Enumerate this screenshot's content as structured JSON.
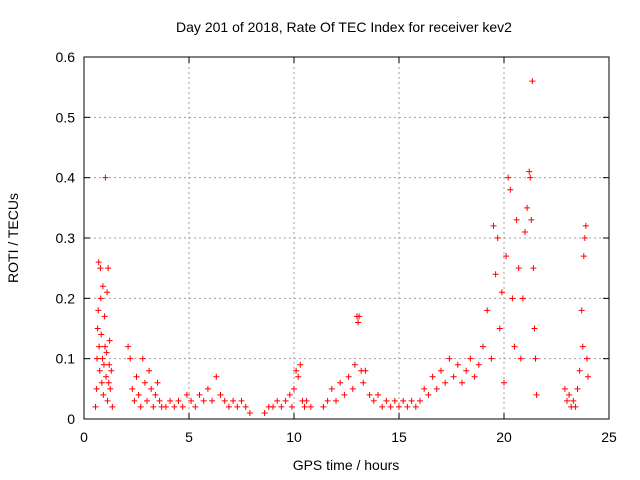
{
  "chart_data": {
    "type": "scatter",
    "title": "Day 201 of 2018, Rate Of TEC Index for receiver kev2",
    "xlabel": "GPS time / hours",
    "ylabel": "ROTI / TECUs",
    "xlim": [
      0,
      25
    ],
    "ylim": [
      0,
      0.6
    ],
    "xticks": [
      0,
      5,
      10,
      15,
      20,
      25
    ],
    "xtick_labels": [
      "0",
      "5",
      "10",
      "15",
      "20",
      "25"
    ],
    "yticks": [
      0,
      0.1,
      0.2,
      0.3,
      0.4,
      0.5,
      0.6
    ],
    "ytick_labels": [
      "0",
      "0.1",
      "0.2",
      "0.3",
      "0.4",
      "0.5",
      "0.6"
    ],
    "grid": true,
    "marker": "plus",
    "color": "#ff0000",
    "series": [
      {
        "name": "ROTI",
        "points": [
          [
            0.55,
            0.02
          ],
          [
            0.6,
            0.05
          ],
          [
            0.62,
            0.1
          ],
          [
            0.65,
            0.15
          ],
          [
            0.68,
            0.18
          ],
          [
            0.7,
            0.26
          ],
          [
            0.72,
            0.12
          ],
          [
            0.75,
            0.08
          ],
          [
            0.78,
            0.25
          ],
          [
            0.8,
            0.2
          ],
          [
            0.82,
            0.14
          ],
          [
            0.85,
            0.06
          ],
          [
            0.88,
            0.1
          ],
          [
            0.9,
            0.22
          ],
          [
            0.92,
            0.04
          ],
          [
            0.95,
            0.09
          ],
          [
            0.98,
            0.17
          ],
          [
            1.0,
            0.12
          ],
          [
            1.02,
            0.4
          ],
          [
            1.05,
            0.07
          ],
          [
            1.08,
            0.11
          ],
          [
            1.1,
            0.21
          ],
          [
            1.12,
            0.03
          ],
          [
            1.15,
            0.25
          ],
          [
            1.18,
            0.06
          ],
          [
            1.2,
            0.09
          ],
          [
            1.22,
            0.13
          ],
          [
            1.25,
            0.05
          ],
          [
            1.3,
            0.08
          ],
          [
            1.35,
            0.02
          ],
          [
            2.1,
            0.12
          ],
          [
            2.2,
            0.1
          ],
          [
            2.3,
            0.05
          ],
          [
            2.4,
            0.03
          ],
          [
            2.5,
            0.07
          ],
          [
            2.6,
            0.04
          ],
          [
            2.7,
            0.02
          ],
          [
            2.8,
            0.1
          ],
          [
            2.9,
            0.06
          ],
          [
            3.0,
            0.03
          ],
          [
            3.1,
            0.08
          ],
          [
            3.2,
            0.05
          ],
          [
            3.3,
            0.02
          ],
          [
            3.4,
            0.04
          ],
          [
            3.5,
            0.06
          ],
          [
            3.6,
            0.03
          ],
          [
            3.7,
            0.02
          ],
          [
            3.9,
            0.02
          ],
          [
            4.1,
            0.03
          ],
          [
            4.3,
            0.02
          ],
          [
            4.5,
            0.03
          ],
          [
            4.7,
            0.02
          ],
          [
            4.9,
            0.04
          ],
          [
            5.1,
            0.03
          ],
          [
            5.3,
            0.02
          ],
          [
            5.5,
            0.04
          ],
          [
            5.7,
            0.03
          ],
          [
            5.9,
            0.05
          ],
          [
            6.1,
            0.03
          ],
          [
            6.3,
            0.07
          ],
          [
            6.5,
            0.04
          ],
          [
            6.7,
            0.03
          ],
          [
            6.9,
            0.02
          ],
          [
            7.1,
            0.03
          ],
          [
            7.3,
            0.02
          ],
          [
            7.5,
            0.03
          ],
          [
            7.7,
            0.02
          ],
          [
            7.9,
            0.01
          ],
          [
            8.6,
            0.01
          ],
          [
            8.8,
            0.02
          ],
          [
            9.0,
            0.02
          ],
          [
            9.2,
            0.03
          ],
          [
            9.4,
            0.02
          ],
          [
            9.6,
            0.03
          ],
          [
            9.8,
            0.04
          ],
          [
            9.9,
            0.02
          ],
          [
            10.0,
            0.05
          ],
          [
            10.1,
            0.08
          ],
          [
            10.2,
            0.07
          ],
          [
            10.3,
            0.09
          ],
          [
            10.4,
            0.03
          ],
          [
            10.5,
            0.02
          ],
          [
            10.6,
            0.03
          ],
          [
            10.8,
            0.02
          ],
          [
            11.4,
            0.02
          ],
          [
            11.6,
            0.03
          ],
          [
            11.8,
            0.05
          ],
          [
            12.0,
            0.03
          ],
          [
            12.2,
            0.06
          ],
          [
            12.4,
            0.04
          ],
          [
            12.6,
            0.07
          ],
          [
            12.8,
            0.05
          ],
          [
            12.9,
            0.09
          ],
          [
            13.0,
            0.17
          ],
          [
            13.05,
            0.16
          ],
          [
            13.1,
            0.17
          ],
          [
            13.2,
            0.08
          ],
          [
            13.3,
            0.06
          ],
          [
            13.4,
            0.08
          ],
          [
            13.6,
            0.04
          ],
          [
            13.8,
            0.03
          ],
          [
            14.0,
            0.04
          ],
          [
            14.2,
            0.02
          ],
          [
            14.4,
            0.03
          ],
          [
            14.6,
            0.02
          ],
          [
            14.8,
            0.03
          ],
          [
            15.0,
            0.02
          ],
          [
            15.2,
            0.03
          ],
          [
            15.4,
            0.02
          ],
          [
            15.6,
            0.03
          ],
          [
            15.8,
            0.02
          ],
          [
            16.0,
            0.03
          ],
          [
            16.2,
            0.05
          ],
          [
            16.4,
            0.04
          ],
          [
            16.6,
            0.07
          ],
          [
            16.8,
            0.05
          ],
          [
            17.0,
            0.08
          ],
          [
            17.2,
            0.06
          ],
          [
            17.4,
            0.1
          ],
          [
            17.6,
            0.07
          ],
          [
            17.8,
            0.09
          ],
          [
            18.0,
            0.06
          ],
          [
            18.2,
            0.08
          ],
          [
            18.4,
            0.1
          ],
          [
            18.6,
            0.07
          ],
          [
            18.8,
            0.09
          ],
          [
            19.0,
            0.12
          ],
          [
            19.2,
            0.18
          ],
          [
            19.4,
            0.1
          ],
          [
            19.5,
            0.32
          ],
          [
            19.6,
            0.24
          ],
          [
            19.7,
            0.3
          ],
          [
            19.8,
            0.15
          ],
          [
            19.9,
            0.21
          ],
          [
            20.0,
            0.06
          ],
          [
            20.1,
            0.27
          ],
          [
            20.2,
            0.4
          ],
          [
            20.3,
            0.38
          ],
          [
            20.4,
            0.2
          ],
          [
            20.5,
            0.12
          ],
          [
            20.6,
            0.33
          ],
          [
            20.7,
            0.25
          ],
          [
            20.8,
            0.1
          ],
          [
            20.9,
            0.2
          ],
          [
            21.0,
            0.31
          ],
          [
            21.1,
            0.35
          ],
          [
            21.2,
            0.41
          ],
          [
            21.25,
            0.4
          ],
          [
            21.3,
            0.33
          ],
          [
            21.35,
            0.56
          ],
          [
            21.4,
            0.25
          ],
          [
            21.45,
            0.15
          ],
          [
            21.5,
            0.1
          ],
          [
            21.55,
            0.04
          ],
          [
            22.9,
            0.05
          ],
          [
            23.0,
            0.03
          ],
          [
            23.1,
            0.04
          ],
          [
            23.2,
            0.02
          ],
          [
            23.3,
            0.03
          ],
          [
            23.4,
            0.02
          ],
          [
            23.5,
            0.05
          ],
          [
            23.6,
            0.08
          ],
          [
            23.7,
            0.18
          ],
          [
            23.75,
            0.12
          ],
          [
            23.8,
            0.27
          ],
          [
            23.85,
            0.3
          ],
          [
            23.9,
            0.32
          ],
          [
            23.95,
            0.1
          ],
          [
            24.0,
            0.07
          ]
        ]
      }
    ]
  }
}
